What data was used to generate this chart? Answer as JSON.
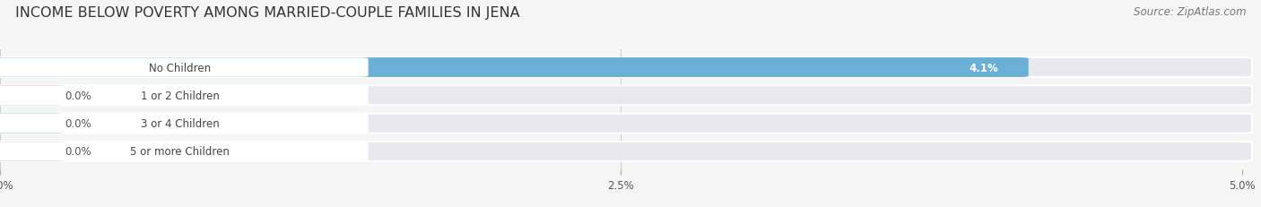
{
  "title": "INCOME BELOW POVERTY AMONG MARRIED-COUPLE FAMILIES IN JENA",
  "source": "Source: ZipAtlas.com",
  "categories": [
    "No Children",
    "1 or 2 Children",
    "3 or 4 Children",
    "5 or more Children"
  ],
  "values": [
    4.1,
    0.0,
    0.0,
    0.0
  ],
  "bar_colors": [
    "#6aafd6",
    "#c9a3c3",
    "#5bbcb0",
    "#a8a8d8"
  ],
  "track_color": "#e8e8ee",
  "label_bg_color": "#ffffff",
  "xlim": [
    0,
    5.0
  ],
  "xticks": [
    0.0,
    2.5,
    5.0
  ],
  "xticklabels": [
    "0.0%",
    "2.5%",
    "5.0%"
  ],
  "bar_height": 0.62,
  "background_color": "#f5f5f5",
  "plot_bg_color": "#f5f5f5",
  "title_fontsize": 11.5,
  "source_fontsize": 8.5,
  "label_fontsize": 8.5,
  "value_fontsize": 8.5,
  "tick_fontsize": 8.5
}
